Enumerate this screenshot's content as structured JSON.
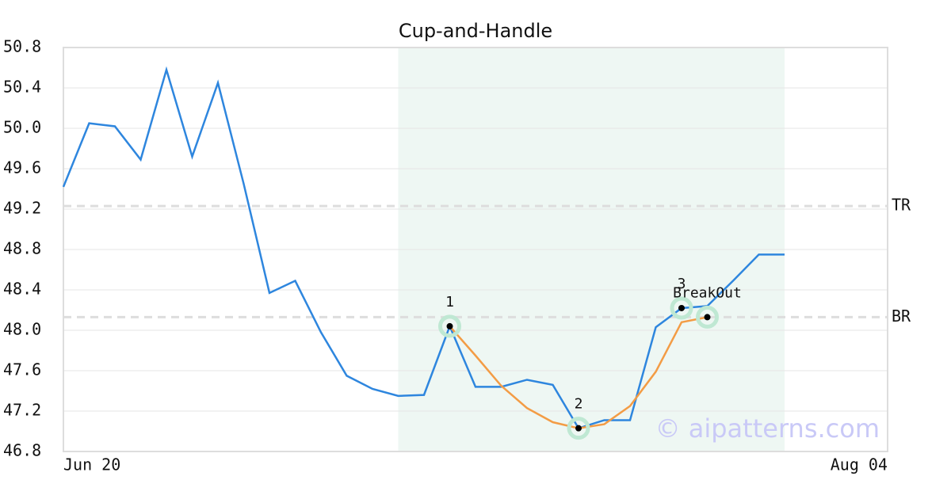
{
  "chart_data": {
    "type": "line",
    "title": "Cup-and-Handle",
    "watermark": "© aipatterns.com",
    "categories": [
      "Jun 20",
      null,
      null,
      null,
      null,
      null,
      null,
      null,
      null,
      null,
      null,
      null,
      null,
      null,
      null,
      null,
      null,
      null,
      null,
      null,
      null,
      null,
      null,
      null,
      null,
      null,
      null,
      null,
      null,
      null,
      null,
      null,
      "Aug 04"
    ],
    "series": [
      {
        "color": "#2e86de",
        "values": [
          49.42,
          50.05,
          50.02,
          49.69,
          50.58,
          49.72,
          50.45,
          49.45,
          48.37,
          48.49,
          47.98,
          47.55,
          47.42,
          47.35,
          47.36,
          48.04,
          47.44,
          47.44,
          47.51,
          47.46,
          47.03,
          47.11,
          47.11,
          48.03,
          48.22,
          48.24,
          48.49,
          48.75,
          48.75,
          null,
          null,
          null,
          null
        ]
      },
      {
        "color": "#f39c45",
        "values": [
          null,
          null,
          null,
          null,
          null,
          null,
          null,
          null,
          null,
          null,
          null,
          null,
          null,
          null,
          null,
          48.04,
          47.75,
          47.45,
          47.23,
          47.09,
          47.03,
          47.07,
          47.25,
          47.59,
          48.08,
          48.13,
          null,
          null,
          null,
          null,
          null,
          null,
          null
        ]
      }
    ],
    "highlight": {
      "start": 13,
      "end": 28,
      "color": "#eef7f3"
    },
    "levels": [
      {
        "label": "TR",
        "value": 49.23
      },
      {
        "label": "BR",
        "value": 48.13
      }
    ],
    "annotations": [
      {
        "label": "1",
        "x": 15,
        "y": 48.04
      },
      {
        "label": "2",
        "x": 20,
        "y": 47.03
      },
      {
        "label": "3",
        "x": 24,
        "y": 48.22
      },
      {
        "label": "BreakOut",
        "x": 25,
        "y": 48.13
      }
    ],
    "ylim": [
      46.8,
      50.8
    ],
    "yticks": [
      46.8,
      47.2,
      47.6,
      {
        "value": 48.0,
        "label": "48.0"
      },
      48.4,
      48.8,
      49.2,
      49.6,
      {
        "value": 50.0,
        "label": "50.0"
      },
      50.4,
      50.8
    ],
    "grid": true
  }
}
